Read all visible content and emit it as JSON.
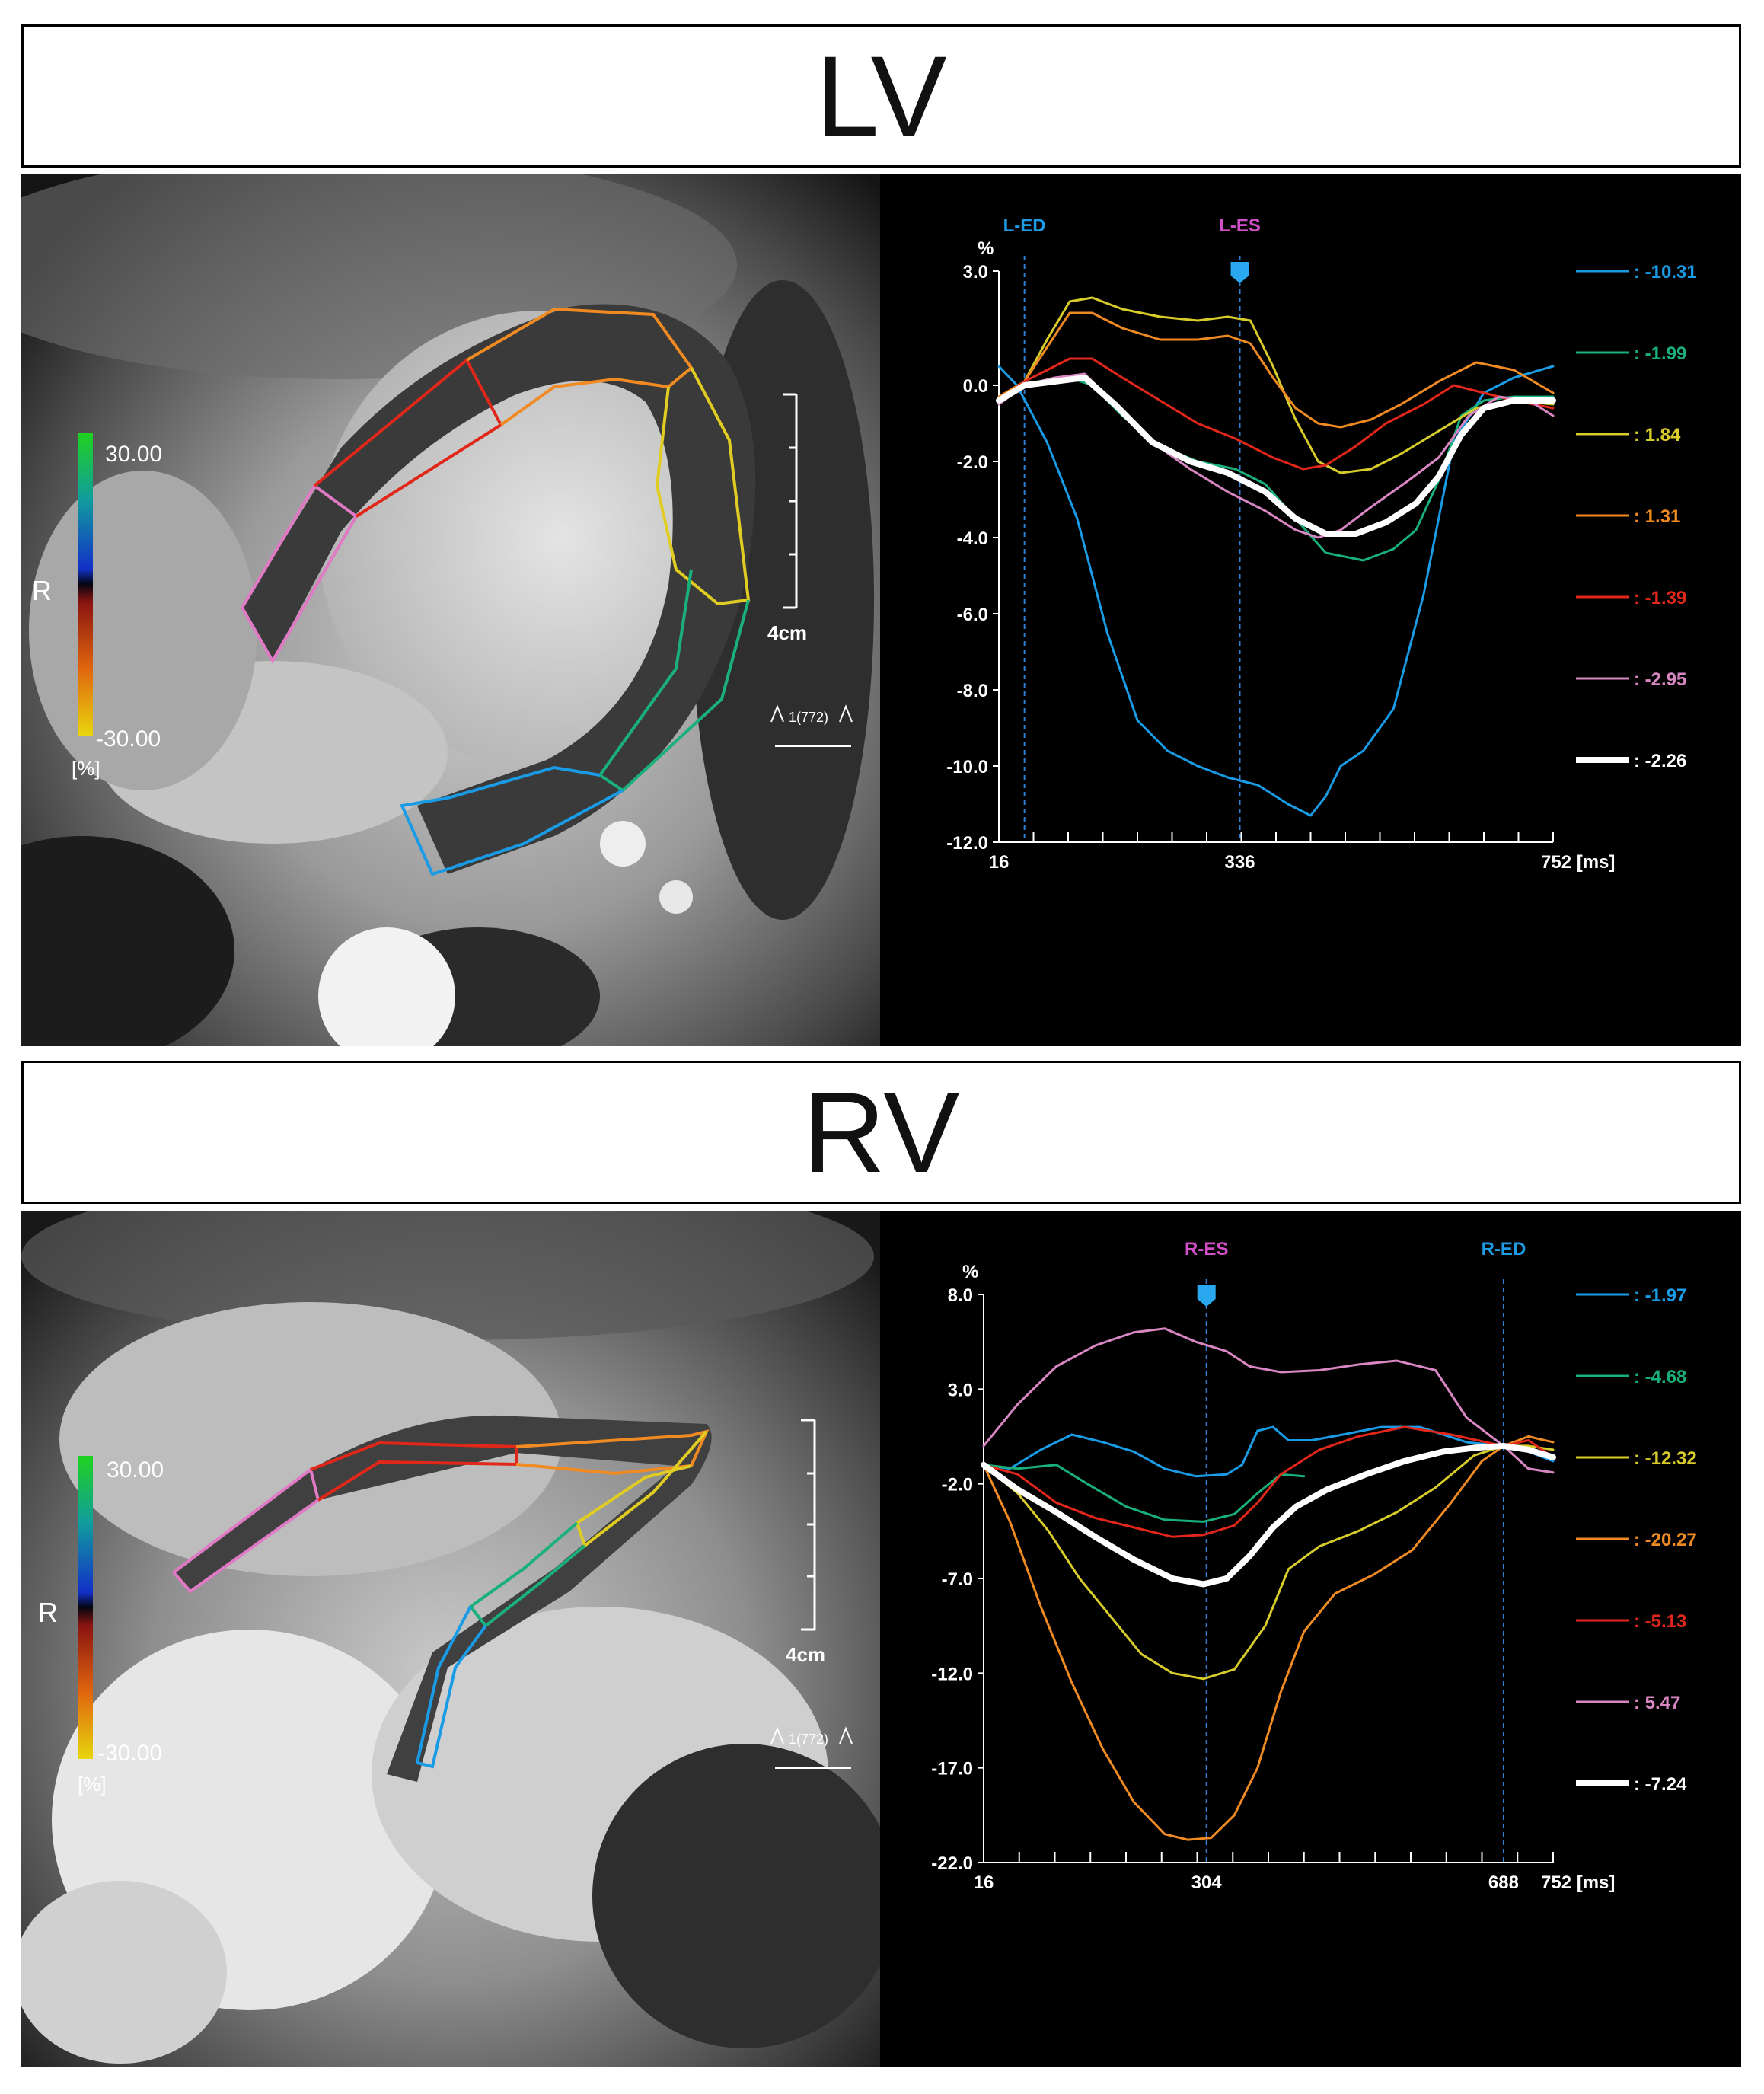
{
  "lv": {
    "title": "LV",
    "colorbar": {
      "max": "30.00",
      "min": "-30.00",
      "letter": "R",
      "unit": "[%]"
    },
    "scale_label": "4cm",
    "frame_label": "1(772)",
    "chart_data": {
      "type": "line",
      "ylabel": "%",
      "xunit": "[ms]",
      "ylim": [
        -12.0,
        3.0
      ],
      "yticks": [
        "3.0",
        "0.0",
        "-2.0",
        "-4.0",
        "-6.0",
        "-8.0",
        "-10.0",
        "-12.0"
      ],
      "xticks": [
        "16",
        "336",
        "752 [ms]"
      ],
      "markers": [
        {
          "label": "L-ED",
          "x": 50,
          "color": "#1f9be6"
        },
        {
          "label": "L-ES",
          "x": 336,
          "color": "#d34fc8"
        }
      ],
      "series": [
        {
          "legend": ": -10.31",
          "color": "#1a9be6",
          "width": 3,
          "x": [
            16,
            40,
            80,
            120,
            160,
            200,
            240,
            280,
            320,
            360,
            400,
            430,
            450,
            470,
            500,
            540,
            580,
            620,
            660,
            700,
            752
          ],
          "y": [
            0.5,
            0.0,
            -1.5,
            -3.5,
            -6.5,
            -8.8,
            -9.6,
            -10.0,
            -10.3,
            -10.5,
            -11.0,
            -11.3,
            -10.8,
            -10.0,
            -9.6,
            -8.5,
            -5.5,
            -1.5,
            -0.2,
            0.2,
            0.5
          ]
        },
        {
          "legend": ": -1.99",
          "color": "#19b07a",
          "width": 3,
          "x": [
            16,
            50,
            80,
            110,
            140,
            180,
            230,
            280,
            330,
            370,
            410,
            450,
            500,
            540,
            570,
            600,
            630,
            660,
            700,
            752
          ],
          "y": [
            -0.4,
            0.0,
            0.1,
            0.2,
            0.0,
            -0.8,
            -1.6,
            -2.0,
            -2.2,
            -2.6,
            -3.5,
            -4.4,
            -4.6,
            -4.3,
            -3.8,
            -2.5,
            -0.8,
            -0.4,
            -0.3,
            -0.3
          ]
        },
        {
          "legend": ": 1.84",
          "color": "#d8cc2a",
          "width": 3,
          "x": [
            16,
            50,
            80,
            110,
            140,
            180,
            230,
            280,
            320,
            350,
            380,
            410,
            440,
            470,
            510,
            550,
            600,
            650,
            700,
            752
          ],
          "y": [
            -0.4,
            0.1,
            1.2,
            2.2,
            2.3,
            2.0,
            1.8,
            1.7,
            1.8,
            1.7,
            0.5,
            -0.9,
            -2.0,
            -2.3,
            -2.2,
            -1.8,
            -1.2,
            -0.6,
            -0.4,
            -0.5
          ]
        },
        {
          "legend": ": 1.31",
          "color": "#f08a22",
          "width": 3,
          "x": [
            16,
            50,
            80,
            110,
            140,
            180,
            230,
            280,
            320,
            350,
            380,
            410,
            440,
            470,
            510,
            550,
            600,
            650,
            700,
            752
          ],
          "y": [
            -0.3,
            0.1,
            1.0,
            1.9,
            1.9,
            1.5,
            1.2,
            1.2,
            1.3,
            1.1,
            0.2,
            -0.6,
            -1.0,
            -1.1,
            -0.9,
            -0.5,
            0.1,
            0.6,
            0.4,
            -0.2
          ]
        },
        {
          "legend": ": -1.39",
          "color": "#e2271a",
          "width": 3,
          "x": [
            16,
            50,
            80,
            110,
            140,
            180,
            230,
            280,
            330,
            380,
            420,
            450,
            490,
            530,
            580,
            620,
            660,
            700,
            752
          ],
          "y": [
            -0.4,
            0.1,
            0.4,
            0.7,
            0.7,
            0.2,
            -0.4,
            -1.0,
            -1.4,
            -1.9,
            -2.2,
            -2.1,
            -1.6,
            -1.0,
            -0.5,
            0.0,
            -0.2,
            -0.4,
            -0.6
          ]
        },
        {
          "legend": ": -2.95",
          "color": "#d987c4",
          "width": 3,
          "x": [
            16,
            50,
            90,
            130,
            170,
            220,
            270,
            320,
            370,
            410,
            440,
            470,
            510,
            560,
            600,
            640,
            680,
            720,
            752
          ],
          "y": [
            -0.5,
            0.0,
            0.2,
            0.3,
            -0.5,
            -1.5,
            -2.2,
            -2.8,
            -3.3,
            -3.8,
            -4.0,
            -3.8,
            -3.2,
            -2.5,
            -1.9,
            -0.8,
            -0.3,
            -0.4,
            -0.8
          ]
        },
        {
          "legend": ": -2.26",
          "color": "#ffffff",
          "width": 8,
          "x": [
            16,
            50,
            90,
            130,
            170,
            220,
            270,
            320,
            370,
            410,
            450,
            490,
            530,
            570,
            600,
            630,
            660,
            700,
            752
          ],
          "y": [
            -0.4,
            0.0,
            0.1,
            0.2,
            -0.5,
            -1.5,
            -2.0,
            -2.3,
            -2.8,
            -3.5,
            -3.9,
            -3.9,
            -3.6,
            -3.1,
            -2.4,
            -1.3,
            -0.6,
            -0.4,
            -0.4
          ]
        }
      ]
    }
  },
  "rv": {
    "title": "RV",
    "colorbar": {
      "max": "30.00",
      "min": "-30.00",
      "letter": "R",
      "unit": "[%]"
    },
    "scale_label": "4cm",
    "frame_label": "1(772)",
    "chart_data": {
      "type": "line",
      "ylabel": "%",
      "xunit": "[ms]",
      "ylim": [
        -22.0,
        8.0
      ],
      "yticks": [
        "8.0",
        "3.0",
        "-2.0",
        "-7.0",
        "-12.0",
        "-17.0",
        "-22.0"
      ],
      "xticks": [
        "16",
        "304",
        "688",
        "752 [ms]"
      ],
      "markers": [
        {
          "label": "R-ES",
          "x": 304,
          "color": "#d34fc8"
        },
        {
          "label": "R-ED",
          "x": 688,
          "color": "#1f9be6"
        }
      ],
      "series": [
        {
          "legend": ": -1.97",
          "color": "#1a9be6",
          "width": 3,
          "x": [
            16,
            50,
            90,
            130,
            170,
            210,
            250,
            290,
            330,
            350,
            370,
            390,
            410,
            440,
            480,
            530,
            580,
            640,
            688,
            720,
            752
          ],
          "y": [
            -1.0,
            -1.2,
            -0.2,
            0.6,
            0.2,
            -0.3,
            -1.2,
            -1.6,
            -1.5,
            -1.0,
            0.8,
            1.0,
            0.3,
            0.3,
            0.6,
            1.0,
            1.0,
            0.2,
            0.0,
            -0.3,
            -0.8
          ]
        },
        {
          "legend": ": -4.68",
          "color": "#19b07a",
          "width": 3,
          "x": [
            16,
            60,
            110,
            150,
            200,
            250,
            300,
            340,
            370,
            400,
            430
          ],
          "y": [
            -1.0,
            -1.2,
            -1.0,
            -2.0,
            -3.2,
            -3.9,
            -4.0,
            -3.6,
            -2.5,
            -1.5,
            -1.6
          ]
        },
        {
          "legend": ": -12.32",
          "color": "#d8cc2a",
          "width": 3,
          "x": [
            16,
            60,
            100,
            140,
            180,
            220,
            260,
            300,
            340,
            380,
            410,
            450,
            500,
            550,
            600,
            650,
            688,
            720,
            752
          ],
          "y": [
            -1.0,
            -2.5,
            -4.5,
            -7.0,
            -9.0,
            -11.0,
            -12.0,
            -12.3,
            -11.8,
            -9.5,
            -6.5,
            -5.3,
            -4.5,
            -3.5,
            -2.2,
            -0.5,
            0.0,
            0.0,
            -0.2
          ]
        },
        {
          "legend": ": -20.27",
          "color": "#f08a22",
          "width": 3,
          "x": [
            16,
            50,
            90,
            130,
            170,
            210,
            250,
            280,
            310,
            340,
            370,
            400,
            430,
            470,
            520,
            570,
            620,
            660,
            688,
            720,
            752
          ],
          "y": [
            -1.0,
            -4.0,
            -8.5,
            -12.5,
            -16.0,
            -18.8,
            -20.5,
            -20.8,
            -20.7,
            -19.5,
            -17.0,
            -13.0,
            -9.8,
            -7.8,
            -6.8,
            -5.5,
            -3.0,
            -0.8,
            0.0,
            0.5,
            0.2
          ]
        },
        {
          "legend": ": -5.13",
          "color": "#e2271a",
          "width": 3,
          "x": [
            16,
            60,
            110,
            160,
            210,
            260,
            300,
            340,
            370,
            400,
            450,
            500,
            560,
            620,
            688,
            720,
            752
          ],
          "y": [
            -1.0,
            -1.5,
            -3.0,
            -3.8,
            -4.3,
            -4.8,
            -4.7,
            -4.2,
            -3.0,
            -1.5,
            -0.2,
            0.5,
            1.0,
            0.6,
            0.0,
            0.3,
            -0.6
          ]
        },
        {
          "legend": ": 5.47",
          "color": "#d987c4",
          "width": 3,
          "x": [
            16,
            60,
            110,
            160,
            210,
            250,
            290,
            330,
            360,
            400,
            450,
            500,
            550,
            600,
            640,
            688,
            720,
            752
          ],
          "y": [
            0.0,
            2.2,
            4.2,
            5.3,
            6.0,
            6.2,
            5.5,
            5.0,
            4.2,
            3.9,
            4.0,
            4.3,
            4.5,
            4.0,
            1.5,
            0.0,
            -1.2,
            -1.4
          ]
        },
        {
          "legend": ": -7.24",
          "color": "#ffffff",
          "width": 8,
          "x": [
            16,
            60,
            110,
            160,
            210,
            260,
            300,
            330,
            360,
            390,
            420,
            460,
            510,
            560,
            610,
            650,
            688,
            720,
            752
          ],
          "y": [
            -1.0,
            -2.3,
            -3.5,
            -4.8,
            -6.0,
            -7.0,
            -7.3,
            -7.0,
            -5.8,
            -4.3,
            -3.2,
            -2.3,
            -1.5,
            -0.8,
            -0.3,
            -0.1,
            0.0,
            -0.2,
            -0.6
          ]
        }
      ]
    }
  }
}
